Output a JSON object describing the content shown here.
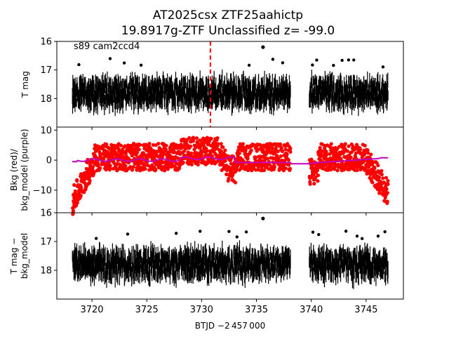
{
  "chart_data": {
    "type": "scatter",
    "title_line1": "AT2025csx  ZTF25aahictp",
    "title_line2": "19.8917g-ZTF Unclassified z= -99.0",
    "xlabel": "BTJD −2 457 000",
    "xlim": [
      3716.8,
      3748.4
    ],
    "x_ticks": [
      3720,
      3725,
      3730,
      3735,
      3740,
      3745
    ],
    "x_tick_labels": [
      "3720",
      "3725",
      "3730",
      "3735",
      "3740",
      "3745"
    ],
    "marker_time": 3730.8,
    "data_segments": [
      [
        3718.2,
        3738.1
      ],
      [
        3739.8,
        3747.0
      ]
    ],
    "panels": [
      {
        "id": "tmag",
        "ylabel_lines": [
          "T mag"
        ],
        "ylim": [
          16,
          19
        ],
        "inverted": true,
        "y_ticks": [
          16,
          17,
          18
        ],
        "y_tick_labels": [
          "16",
          "17",
          "18"
        ],
        "annotation": "s89 cam2ccd4",
        "series_color": "#000000",
        "band_center": 17.8,
        "band_half_width": 0.45,
        "outlier": {
          "x": 3735.6,
          "y": 16.2
        }
      },
      {
        "id": "bkg",
        "ylabel_lines": [
          "Bkg (red)/",
          "bkg_model (purple)"
        ],
        "ylim": [
          -17.5,
          11
        ],
        "inverted": false,
        "y_ticks": [
          10,
          0,
          -10
        ],
        "y_tick_labels": [
          "10",
          "0",
          "−10"
        ],
        "series_color": "#ff0000",
        "model_color": "#bf00bf"
      },
      {
        "id": "resid",
        "ylabel_lines": [
          "T mag −",
          "bkg_model"
        ],
        "ylim": [
          16,
          19
        ],
        "inverted": true,
        "y_ticks": [
          16,
          17,
          18
        ],
        "y_tick_labels": [
          "16",
          "17",
          "18"
        ],
        "series_color": "#000000",
        "band_center": 17.8,
        "band_half_width": 0.45,
        "outlier": {
          "x": 3735.6,
          "y": 16.2
        }
      }
    ]
  }
}
